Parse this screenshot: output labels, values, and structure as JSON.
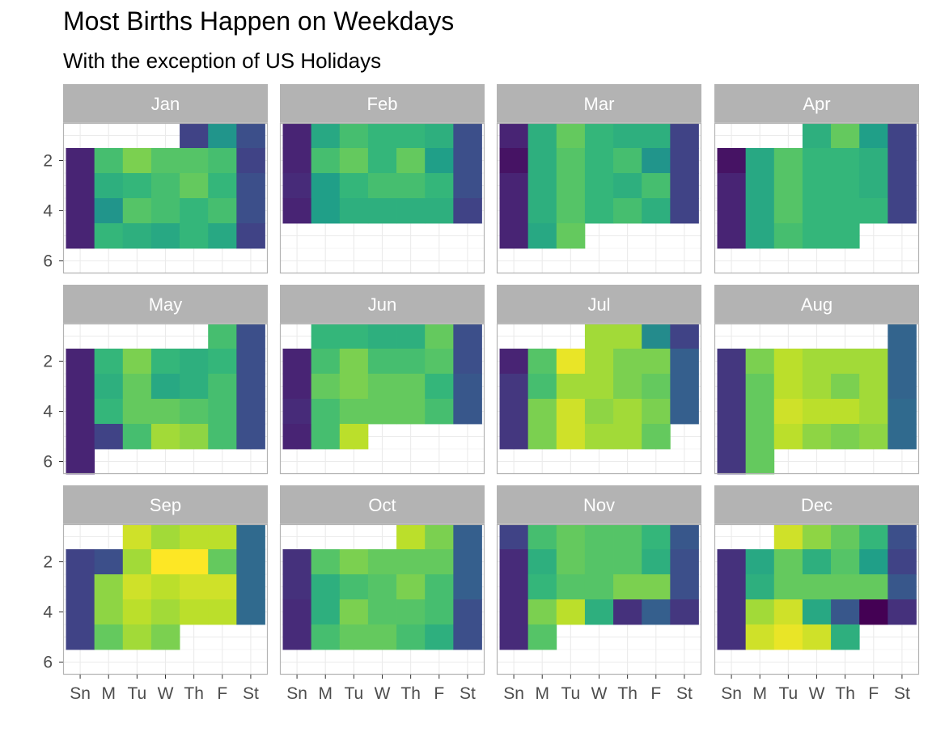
{
  "chart_data": {
    "type": "heatmap",
    "title": "Most Births Happen on Weekdays",
    "subtitle": "With the exception of US Holidays",
    "xlabel": "",
    "ylabel": "",
    "x_categories": [
      "Sn",
      "M",
      "Tu",
      "W",
      "Th",
      "F",
      "St"
    ],
    "y_ticks": [
      2,
      4,
      6
    ],
    "y_range": [
      0.5,
      6.5
    ],
    "colorscale": "viridis",
    "value_scale": "relative 0-1 (0 = dark purple, 1 = yellow)",
    "legend": "none",
    "grid": true,
    "facets": [
      {
        "month": "Jan",
        "rows": [
          [
            null,
            null,
            null,
            null,
            0.2,
            0.52,
            0.24
          ],
          [
            0.1,
            0.7,
            0.8,
            0.73,
            0.73,
            0.7,
            0.2
          ],
          [
            0.1,
            0.63,
            0.66,
            0.7,
            0.76,
            0.66,
            0.24
          ],
          [
            0.1,
            0.52,
            0.73,
            0.7,
            0.66,
            0.7,
            0.24
          ],
          [
            0.1,
            0.66,
            0.63,
            0.6,
            0.66,
            0.6,
            0.2
          ],
          [
            null,
            null,
            null,
            null,
            null,
            null,
            null
          ]
        ]
      },
      {
        "month": "Feb",
        "rows": [
          [
            0.1,
            0.6,
            0.7,
            0.66,
            0.66,
            0.63,
            0.24
          ],
          [
            0.1,
            0.7,
            0.76,
            0.66,
            0.76,
            0.56,
            0.24
          ],
          [
            0.12,
            0.56,
            0.66,
            0.7,
            0.7,
            0.66,
            0.24
          ],
          [
            0.1,
            0.56,
            0.63,
            0.63,
            0.63,
            0.63,
            0.2
          ],
          [
            null,
            null,
            null,
            null,
            null,
            null,
            null
          ],
          [
            null,
            null,
            null,
            null,
            null,
            null,
            null
          ]
        ]
      },
      {
        "month": "Mar",
        "rows": [
          [
            0.1,
            0.63,
            0.76,
            0.66,
            0.63,
            0.63,
            0.2
          ],
          [
            0.05,
            0.63,
            0.73,
            0.66,
            0.7,
            0.52,
            0.2
          ],
          [
            0.1,
            0.63,
            0.73,
            0.66,
            0.63,
            0.7,
            0.2
          ],
          [
            0.1,
            0.63,
            0.73,
            0.66,
            0.7,
            0.63,
            0.2
          ],
          [
            0.1,
            0.6,
            0.76,
            null,
            null,
            null,
            null
          ],
          [
            null,
            null,
            null,
            null,
            null,
            null,
            null
          ]
        ]
      },
      {
        "month": "Apr",
        "rows": [
          [
            null,
            null,
            null,
            0.63,
            0.76,
            0.56,
            0.2
          ],
          [
            0.05,
            0.6,
            0.73,
            0.66,
            0.66,
            0.63,
            0.2
          ],
          [
            0.1,
            0.6,
            0.73,
            0.66,
            0.66,
            0.63,
            0.2
          ],
          [
            0.1,
            0.6,
            0.73,
            0.66,
            0.66,
            0.66,
            0.2
          ],
          [
            0.1,
            0.6,
            0.7,
            0.66,
            0.66,
            null,
            null
          ],
          [
            null,
            null,
            null,
            null,
            null,
            null,
            null
          ]
        ]
      },
      {
        "month": "May",
        "rows": [
          [
            null,
            null,
            null,
            null,
            null,
            0.7,
            0.24
          ],
          [
            0.1,
            0.66,
            0.8,
            0.66,
            0.63,
            0.66,
            0.24
          ],
          [
            0.1,
            0.63,
            0.76,
            0.6,
            0.63,
            0.7,
            0.24
          ],
          [
            0.1,
            0.66,
            0.76,
            0.76,
            0.73,
            0.7,
            0.24
          ],
          [
            0.1,
            0.2,
            0.7,
            0.86,
            0.83,
            0.7,
            0.24
          ],
          [
            0.1,
            null,
            null,
            null,
            null,
            null,
            null
          ]
        ]
      },
      {
        "month": "Jun",
        "rows": [
          [
            null,
            0.66,
            0.66,
            0.63,
            0.63,
            0.76,
            0.24
          ],
          [
            0.1,
            0.7,
            0.8,
            0.7,
            0.7,
            0.73,
            0.24
          ],
          [
            0.1,
            0.76,
            0.8,
            0.76,
            0.76,
            0.66,
            0.27
          ],
          [
            0.12,
            0.7,
            0.76,
            0.76,
            0.76,
            0.7,
            0.27
          ],
          [
            0.1,
            0.7,
            0.9,
            null,
            null,
            null,
            null
          ],
          [
            null,
            null,
            null,
            null,
            null,
            null,
            null
          ]
        ]
      },
      {
        "month": "Jul",
        "rows": [
          [
            null,
            null,
            null,
            0.86,
            0.86,
            0.48,
            0.2
          ],
          [
            0.1,
            0.73,
            0.97,
            0.86,
            0.8,
            0.8,
            0.3
          ],
          [
            0.16,
            0.7,
            0.86,
            0.86,
            0.8,
            0.76,
            0.3
          ],
          [
            0.16,
            0.8,
            0.93,
            0.83,
            0.86,
            0.8,
            0.3
          ],
          [
            0.16,
            0.8,
            0.93,
            0.86,
            0.86,
            0.76,
            null
          ],
          [
            null,
            null,
            null,
            null,
            null,
            null,
            null
          ]
        ]
      },
      {
        "month": "Aug",
        "rows": [
          [
            null,
            null,
            null,
            null,
            null,
            null,
            0.32
          ],
          [
            0.16,
            0.8,
            0.9,
            0.86,
            0.86,
            0.86,
            0.32
          ],
          [
            0.16,
            0.76,
            0.9,
            0.86,
            0.8,
            0.86,
            0.32
          ],
          [
            0.16,
            0.76,
            0.93,
            0.9,
            0.9,
            0.86,
            0.34
          ],
          [
            0.16,
            0.76,
            0.9,
            0.83,
            0.8,
            0.83,
            0.34
          ],
          [
            0.16,
            0.76,
            null,
            null,
            null,
            null,
            null
          ]
        ]
      },
      {
        "month": "Sep",
        "rows": [
          [
            null,
            null,
            0.93,
            0.86,
            0.9,
            0.9,
            0.34
          ],
          [
            0.2,
            0.24,
            0.86,
            1.0,
            1.0,
            0.76,
            0.34
          ],
          [
            0.2,
            0.83,
            0.93,
            0.9,
            0.93,
            0.93,
            0.34
          ],
          [
            0.2,
            0.83,
            0.9,
            0.86,
            0.9,
            0.9,
            0.34
          ],
          [
            0.2,
            0.76,
            0.86,
            0.8,
            null,
            null,
            null
          ],
          [
            null,
            null,
            null,
            null,
            null,
            null,
            null
          ]
        ]
      },
      {
        "month": "Oct",
        "rows": [
          [
            null,
            null,
            null,
            null,
            0.9,
            0.8,
            0.3
          ],
          [
            0.14,
            0.73,
            0.8,
            0.76,
            0.76,
            0.76,
            0.3
          ],
          [
            0.14,
            0.63,
            0.7,
            0.73,
            0.8,
            0.7,
            0.3
          ],
          [
            0.12,
            0.63,
            0.8,
            0.73,
            0.73,
            0.7,
            0.24
          ],
          [
            0.12,
            0.7,
            0.76,
            0.76,
            0.7,
            0.63,
            0.24
          ],
          [
            null,
            null,
            null,
            null,
            null,
            null,
            null
          ]
        ]
      },
      {
        "month": "Nov",
        "rows": [
          [
            0.2,
            0.7,
            0.76,
            0.73,
            0.73,
            0.66,
            0.27
          ],
          [
            0.12,
            0.63,
            0.76,
            0.73,
            0.73,
            0.63,
            0.24
          ],
          [
            0.12,
            0.66,
            0.73,
            0.73,
            0.8,
            0.8,
            0.24
          ],
          [
            0.12,
            0.8,
            0.9,
            0.63,
            0.14,
            0.3,
            0.16
          ],
          [
            0.12,
            0.73,
            null,
            null,
            null,
            null,
            null
          ],
          [
            null,
            null,
            null,
            null,
            null,
            null,
            null
          ]
        ]
      },
      {
        "month": "Dec",
        "rows": [
          [
            null,
            null,
            0.93,
            0.83,
            0.76,
            0.66,
            0.24
          ],
          [
            0.14,
            0.6,
            0.76,
            0.63,
            0.73,
            0.56,
            0.2
          ],
          [
            0.14,
            0.63,
            0.76,
            0.76,
            0.76,
            0.76,
            0.27
          ],
          [
            0.14,
            0.86,
            0.93,
            0.6,
            0.27,
            0.0,
            0.14
          ],
          [
            0.14,
            0.93,
            0.97,
            0.93,
            0.63,
            null,
            null
          ],
          [
            null,
            null,
            null,
            null,
            null,
            null,
            null
          ]
        ]
      }
    ]
  }
}
